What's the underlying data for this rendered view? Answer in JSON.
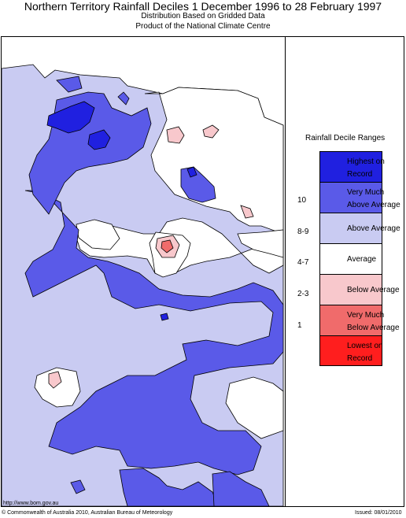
{
  "header": {
    "title": "Northern Territory Rainfall Deciles     1 December 1996 to 28 February 1997",
    "subtitle1": "Distribution Based on Gridded Data",
    "subtitle2": "Product of the National Climate Centre"
  },
  "legend": {
    "title": "Rainfall Decile Ranges",
    "categories": [
      {
        "label": "Highest on Record",
        "color": "#2020e0"
      },
      {
        "label": "Very Much Above Average",
        "color": "#5a5ae8",
        "range": "10"
      },
      {
        "label": "Above Average",
        "color": "#c9cbf2",
        "range": "8-9"
      },
      {
        "label": "Average",
        "color": "#ffffff",
        "range": "4-7"
      },
      {
        "label": "Below Average",
        "color": "#f8c8cc",
        "range": "2-3"
      },
      {
        "label": "Very Much Below Average",
        "color": "#f06b6b",
        "range": "1"
      },
      {
        "label": "Lowest on Record",
        "color": "#ff1e1e"
      }
    ]
  },
  "footer": {
    "url": "http://www.bom.gov.au",
    "copyright": "© Commonwealth of Australia 2010, Australian Bureau of Meteorology",
    "issued": "Issued: 08/01/2010"
  }
}
